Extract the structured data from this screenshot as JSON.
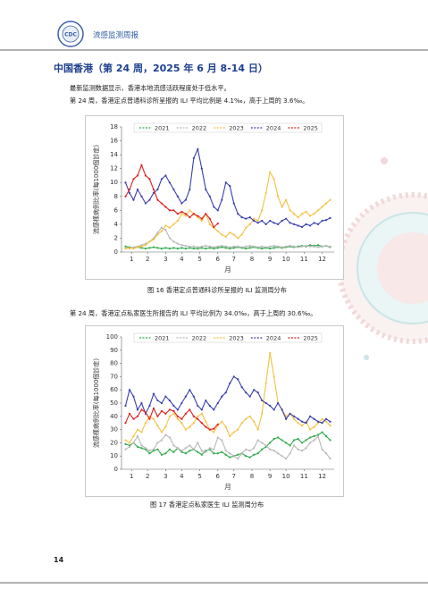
{
  "header": {
    "title": "流感监测周报"
  },
  "section": {
    "title": "中国香港（第 24 周，2025 年 6 月 8-14 日）",
    "paragraphs": [
      "最新监测数据显示，香港本地流感活跃程度处于低水平。",
      "第 24 周，香港定点普通科诊所呈报的 ILI 平均比例是 4.1‰，高于上周的 3.6‰。",
      "第 24 周，香港定点私家医生所报告的 ILI 平均比例为 34.0‰，高于上周的 30.6‰。"
    ]
  },
  "chart_data": [
    {
      "type": "line",
      "caption": "图 16   香港定点普通科诊所呈报的 ILI 监测周分布",
      "y_label": "流感樣病例比率(每1000個診症)",
      "x_label": "月",
      "x": [
        1,
        2,
        3,
        4,
        5,
        6,
        7,
        8,
        9,
        10,
        11,
        12,
        13,
        14,
        15,
        16,
        17,
        18,
        19,
        20,
        21,
        22,
        23,
        24,
        25,
        26,
        27,
        28,
        29,
        30,
        31,
        32,
        33,
        34,
        35,
        36,
        37,
        38,
        39,
        40,
        41,
        42,
        43,
        44,
        45,
        46,
        47,
        48,
        49,
        50,
        51,
        52
      ],
      "xlim": [
        0,
        53
      ],
      "xticks": [
        {
          "value": 2.5,
          "label": "1"
        },
        {
          "value": 6.5,
          "label": "2"
        },
        {
          "value": 11,
          "label": "3"
        },
        {
          "value": 15,
          "label": "4"
        },
        {
          "value": 19.5,
          "label": "5"
        },
        {
          "value": 24,
          "label": "6"
        },
        {
          "value": 28,
          "label": "7"
        },
        {
          "value": 32.5,
          "label": "8"
        },
        {
          "value": 37,
          "label": "9"
        },
        {
          "value": 41,
          "label": "10"
        },
        {
          "value": 45.5,
          "label": "11"
        },
        {
          "value": 50,
          "label": "12"
        }
      ],
      "ylim": [
        0,
        18
      ],
      "yticks": [
        0,
        2,
        4,
        6,
        8,
        10,
        12,
        14,
        16,
        18
      ],
      "series": [
        {
          "name": "2021",
          "color": "#2eaa4a",
          "values": [
            0.8,
            0.7,
            0.6,
            0.7,
            0.6,
            0.5,
            0.6,
            0.7,
            0.6,
            0.5,
            0.6,
            0.5,
            0.6,
            0.5,
            0.6,
            0.5,
            0.6,
            0.5,
            0.5,
            0.6,
            0.5,
            0.6,
            0.5,
            0.6,
            0.7,
            0.6,
            0.5,
            0.6,
            0.7,
            0.6,
            0.5,
            0.6,
            0.7,
            0.6,
            0.5,
            0.6,
            0.5,
            0.6,
            0.7,
            0.6,
            0.7,
            0.8,
            0.7,
            0.8,
            0.9,
            0.8,
            1.0,
            0.9,
            1.0,
            0.8,
            0.9,
            0.7
          ]
        },
        {
          "name": "2022",
          "color": "#b8b8b8",
          "values": [
            0.6,
            0.5,
            0.7,
            0.8,
            1.0,
            1.2,
            1.5,
            2.0,
            2.8,
            3.5,
            3.2,
            2.0,
            1.5,
            1.2,
            1.0,
            0.9,
            0.8,
            0.8,
            0.7,
            0.8,
            0.9,
            0.8,
            0.7,
            0.8,
            0.9,
            0.8,
            0.7,
            0.8,
            0.8,
            0.7,
            0.8,
            0.9,
            0.8,
            0.7,
            0.8,
            0.7,
            0.8,
            0.9,
            0.8,
            0.7,
            0.8,
            0.9,
            0.8,
            0.7,
            0.8,
            0.9,
            0.8,
            0.8,
            0.7,
            0.8,
            0.9,
            0.8
          ]
        },
        {
          "name": "2023",
          "color": "#f5c242",
          "values": [
            0.5,
            0.6,
            0.5,
            0.7,
            0.8,
            1.0,
            1.5,
            1.8,
            2.5,
            3.0,
            3.8,
            3.5,
            4.0,
            4.5,
            5.5,
            5.2,
            6.0,
            5.5,
            5.0,
            4.5,
            5.5,
            4.0,
            3.5,
            3.0,
            2.5,
            2.2,
            2.8,
            2.5,
            2.0,
            2.5,
            3.5,
            4.0,
            4.8,
            4.5,
            6.0,
            8.5,
            11.5,
            10.5,
            8.0,
            6.5,
            7.5,
            6.0,
            5.5,
            5.0,
            5.5,
            5.8,
            5.2,
            5.5,
            6.0,
            6.5,
            7.0,
            7.5
          ]
        },
        {
          "name": "2024",
          "color": "#3a3fb0",
          "values": [
            10.0,
            8.5,
            7.5,
            9.0,
            8.0,
            7.0,
            7.5,
            8.5,
            9.0,
            10.5,
            11.0,
            10.0,
            9.0,
            8.0,
            7.0,
            7.5,
            9.0,
            13.5,
            14.8,
            12.0,
            9.0,
            8.0,
            6.5,
            6.0,
            7.5,
            10.0,
            9.5,
            7.0,
            5.5,
            5.0,
            4.8,
            5.0,
            4.5,
            4.2,
            4.5,
            4.0,
            4.5,
            4.2,
            4.0,
            4.5,
            4.8,
            4.2,
            4.0,
            3.8,
            3.6,
            4.0,
            3.8,
            4.2,
            4.0,
            4.5,
            4.6,
            4.9
          ]
        },
        {
          "name": "2025",
          "color": "#e02020",
          "values": [
            8.0,
            9.0,
            10.5,
            11.0,
            12.5,
            11.0,
            10.5,
            9.0,
            7.5,
            7.0,
            6.5,
            6.0,
            6.0,
            5.5,
            5.8,
            5.5,
            5.0,
            5.5,
            5.2,
            4.8,
            5.5,
            4.8,
            3.6,
            4.1,
            null,
            null,
            null,
            null,
            null,
            null,
            null,
            null,
            null,
            null,
            null,
            null,
            null,
            null,
            null,
            null,
            null,
            null,
            null,
            null,
            null,
            null,
            null,
            null,
            null,
            null,
            null,
            null
          ]
        }
      ]
    },
    {
      "type": "line",
      "caption": "图 17   香港定点私家医生 ILI 监测周分布",
      "y_label": "流感樣病例比率(每1000個診症)",
      "x_label": "月",
      "x": [
        1,
        2,
        3,
        4,
        5,
        6,
        7,
        8,
        9,
        10,
        11,
        12,
        13,
        14,
        15,
        16,
        17,
        18,
        19,
        20,
        21,
        22,
        23,
        24,
        25,
        26,
        27,
        28,
        29,
        30,
        31,
        32,
        33,
        34,
        35,
        36,
        37,
        38,
        39,
        40,
        41,
        42,
        43,
        44,
        45,
        46,
        47,
        48,
        49,
        50,
        51,
        52
      ],
      "xlim": [
        0,
        53
      ],
      "xticks": [
        {
          "value": 2.5,
          "label": "1"
        },
        {
          "value": 6.5,
          "label": "2"
        },
        {
          "value": 11,
          "label": "3"
        },
        {
          "value": 15,
          "label": "4"
        },
        {
          "value": 19.5,
          "label": "5"
        },
        {
          "value": 24,
          "label": "6"
        },
        {
          "value": 28,
          "label": "7"
        },
        {
          "value": 32.5,
          "label": "8"
        },
        {
          "value": 37,
          "label": "9"
        },
        {
          "value": 41,
          "label": "10"
        },
        {
          "value": 45.5,
          "label": "11"
        },
        {
          "value": 50,
          "label": "12"
        }
      ],
      "ylim": [
        0,
        100
      ],
      "yticks": [
        0,
        10,
        20,
        30,
        40,
        50,
        60,
        70,
        80,
        90,
        100
      ],
      "series": [
        {
          "name": "2021",
          "color": "#2eaa4a",
          "values": [
            19,
            18,
            20,
            17,
            16,
            15,
            12,
            14,
            15,
            11,
            12,
            15,
            13,
            16,
            13,
            12,
            14,
            15,
            13,
            11,
            14,
            15,
            12,
            12,
            13,
            11,
            9,
            10,
            11,
            12,
            10,
            9,
            11,
            12,
            15,
            17,
            20,
            23,
            24,
            22,
            20,
            18,
            22,
            23,
            20,
            22,
            24,
            25,
            26,
            28,
            25,
            22
          ]
        },
        {
          "name": "2022",
          "color": "#b8b8b8",
          "values": [
            15,
            17,
            20,
            25,
            18,
            16,
            14,
            15,
            20,
            22,
            26,
            24,
            18,
            16,
            14,
            16,
            18,
            15,
            20,
            14,
            13,
            16,
            15,
            24,
            22,
            14,
            12,
            10,
            8,
            12,
            15,
            14,
            16,
            22,
            20,
            18,
            15,
            14,
            12,
            10,
            8,
            12,
            18,
            15,
            14,
            16,
            20,
            22,
            25,
            15,
            12,
            8
          ]
        },
        {
          "name": "2023",
          "color": "#f5c242",
          "values": [
            22,
            20,
            25,
            30,
            28,
            35,
            40,
            38,
            33,
            28,
            32,
            40,
            42,
            38,
            35,
            30,
            32,
            35,
            40,
            42,
            36,
            30,
            28,
            33,
            36,
            32,
            25,
            28,
            30,
            35,
            38,
            40,
            36,
            30,
            42,
            65,
            88,
            70,
            50,
            45,
            40,
            42,
            38,
            35,
            33,
            36,
            30,
            32,
            35,
            38,
            36,
            33
          ]
        },
        {
          "name": "2024",
          "color": "#3a3fb0",
          "values": [
            48,
            60,
            55,
            45,
            50,
            42,
            48,
            57,
            52,
            50,
            55,
            52,
            48,
            45,
            50,
            55,
            60,
            55,
            48,
            45,
            52,
            48,
            45,
            50,
            55,
            58,
            65,
            70,
            68,
            62,
            58,
            55,
            60,
            58,
            52,
            50,
            48,
            45,
            50,
            45,
            38,
            42,
            40,
            38,
            36,
            35,
            40,
            38,
            36,
            35,
            38,
            36
          ]
        },
        {
          "name": "2025",
          "color": "#e02020",
          "values": [
            35,
            42,
            38,
            40,
            45,
            43,
            38,
            46,
            40,
            44,
            42,
            45,
            44,
            40,
            38,
            42,
            45,
            40,
            38,
            35,
            32,
            30,
            30.6,
            34,
            null,
            null,
            null,
            null,
            null,
            null,
            null,
            null,
            null,
            null,
            null,
            null,
            null,
            null,
            null,
            null,
            null,
            null,
            null,
            null,
            null,
            null,
            null,
            null,
            null,
            null,
            null,
            null
          ]
        }
      ]
    }
  ],
  "page_number": "14"
}
